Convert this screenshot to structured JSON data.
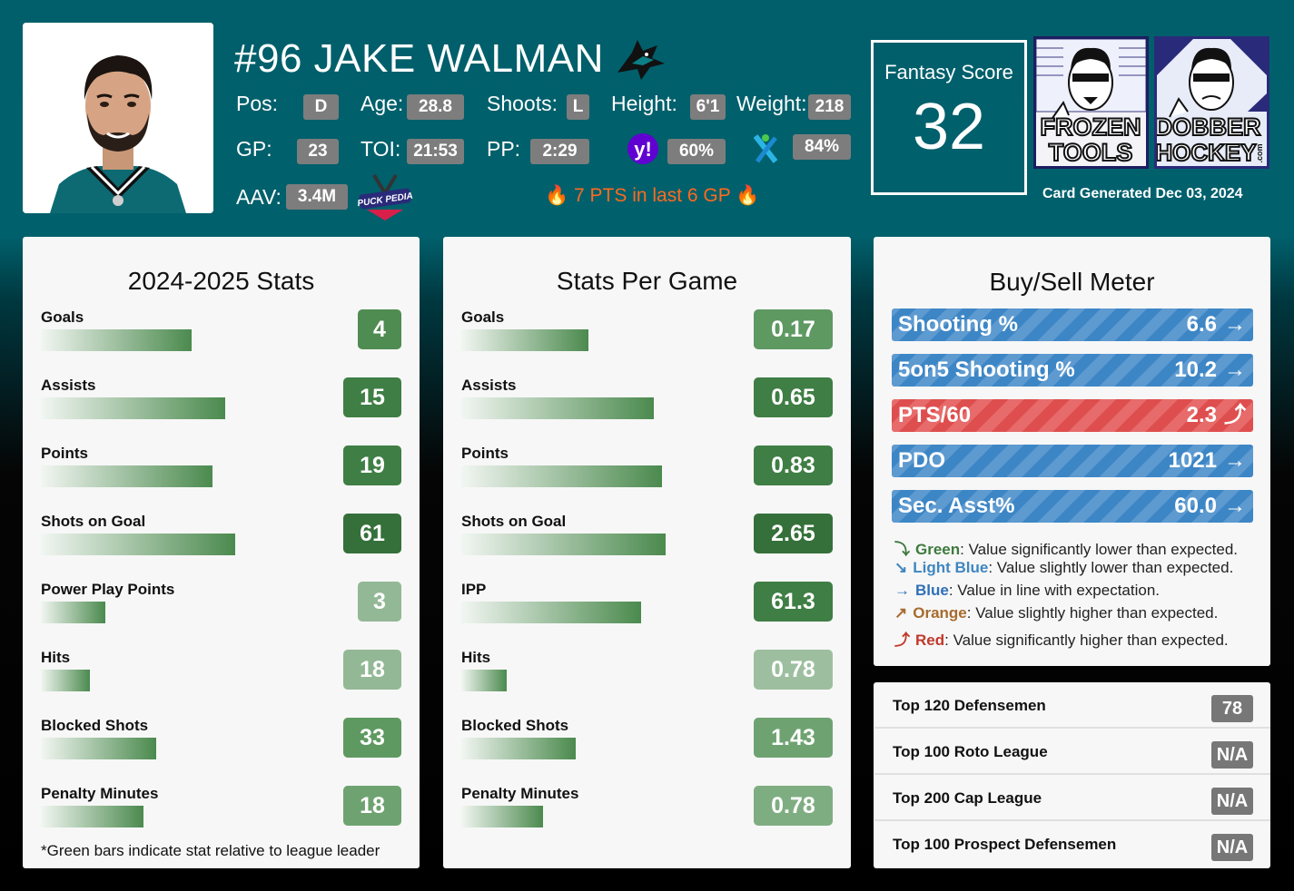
{
  "player": {
    "name": "#96 JAKE WALMAN",
    "labels": {
      "pos": "Pos:",
      "age": "Age:",
      "shoots": "Shoots:",
      "height": "Height:",
      "weight": "Weight:",
      "gp": "GP:",
      "toi": "TOI:",
      "pp": "PP:",
      "aav": "AAV:"
    },
    "values": {
      "pos": "D",
      "age": "28.8",
      "shoots": "L",
      "height": "6'1",
      "weight": "218",
      "gp": "23",
      "toi": "21:53",
      "pp": "2:29",
      "yahoo": "60%",
      "espn": "84%",
      "aav": "3.4M"
    },
    "hot_streak": "7 PTS in last 6 GP"
  },
  "fantasy": {
    "label": "Fantasy Score",
    "score": "32"
  },
  "logos": {
    "frozen_line1": "FROZEN",
    "frozen_line2": "TOOLS",
    "dobber_line1": "DOBBER",
    "dobber_line2": "HOCKEY",
    "dobber_com": ".com",
    "puckpedia": "PUCK PEDIA"
  },
  "generated": "Card Generated Dec 03, 2024",
  "season_stats": {
    "title": "2024-2025 Stats",
    "rows": [
      {
        "label": "Goals",
        "value": "4",
        "fraction": 0.59,
        "color": "#4f8c52"
      },
      {
        "label": "Assists",
        "value": "15",
        "fraction": 0.72,
        "color": "#3f7e44"
      },
      {
        "label": "Points",
        "value": "19",
        "fraction": 0.67,
        "color": "#3f7e44"
      },
      {
        "label": "Shots on Goal",
        "value": "61",
        "fraction": 0.76,
        "color": "#35703a"
      },
      {
        "label": "Power Play Points",
        "value": "3",
        "fraction": 0.25,
        "color": "#93b895"
      },
      {
        "label": "Hits",
        "value": "18",
        "fraction": 0.19,
        "color": "#93b895"
      },
      {
        "label": "Blocked Shots",
        "value": "33",
        "fraction": 0.45,
        "color": "#5e9961"
      },
      {
        "label": "Penalty Minutes",
        "value": "18",
        "fraction": 0.4,
        "color": "#6ea371"
      }
    ],
    "footnote": "*Green bars indicate stat relative to league leader"
  },
  "per_game": {
    "title": "Stats Per Game",
    "rows": [
      {
        "label": "Goals",
        "value": "0.17",
        "fraction": 0.31,
        "color": "#5e9961"
      },
      {
        "label": "Assists",
        "value": "0.65",
        "fraction": 0.47,
        "color": "#3f7e44"
      },
      {
        "label": "Points",
        "value": "0.83",
        "fraction": 0.49,
        "color": "#3f7e44"
      },
      {
        "label": "Shots on Goal",
        "value": "2.65",
        "fraction": 0.5,
        "color": "#35703a"
      },
      {
        "label": "IPP",
        "value": "61.3",
        "fraction": 0.44,
        "color": "#3f7e44"
      },
      {
        "label": "Hits",
        "value": "0.78",
        "fraction": 0.11,
        "color": "#9dbf9f"
      },
      {
        "label": "Blocked Shots",
        "value": "1.43",
        "fraction": 0.28,
        "color": "#6ea371"
      },
      {
        "label": "Penalty Minutes",
        "value": "0.78",
        "fraction": 0.2,
        "color": "#7fad82"
      }
    ]
  },
  "meter": {
    "title": "Buy/Sell Meter",
    "rows": [
      {
        "label": "Shooting %",
        "value": "6.6",
        "arrow": "→",
        "level": "blue"
      },
      {
        "label": "5on5 Shooting %",
        "value": "10.2",
        "arrow": "→",
        "level": "blue"
      },
      {
        "label": "PTS/60",
        "value": "2.3",
        "arrow": "⤴",
        "level": "red"
      },
      {
        "label": "PDO",
        "value": "1021",
        "arrow": "→",
        "level": "blue"
      },
      {
        "label": "Sec. Asst%",
        "value": "60.0",
        "arrow": "→",
        "level": "blue"
      }
    ],
    "legend": [
      {
        "arrow": "⤵",
        "term": "Green",
        "desc": ": Value significantly lower than expected.",
        "color": "#3d7a3e"
      },
      {
        "arrow": "↘",
        "term": "Light Blue",
        "desc": ": Value slightly lower than expected.",
        "color": "#3f86c0"
      },
      {
        "arrow": "→",
        "term": "Blue",
        "desc": ": Value in line with expectation.",
        "color": "#2f6fb6"
      },
      {
        "arrow": "↗",
        "term": "Orange",
        "desc": ": Value slightly higher than expected.",
        "color": "#a86b2d"
      },
      {
        "arrow": "⤴",
        "term": "Red",
        "desc": ": Value significantly higher than expected.",
        "color": "#c0392b"
      }
    ]
  },
  "rankings": [
    {
      "label": "Top 120 Defensemen",
      "value": "78"
    },
    {
      "label": "Top 100 Roto League",
      "value": "N/A"
    },
    {
      "label": "Top 200 Cap League",
      "value": "N/A"
    },
    {
      "label": "Top 100 Prospect Defensemen",
      "value": "N/A"
    }
  ],
  "colors": {
    "header_teal": "#005f6b",
    "blue_meter": "#3d86c6",
    "red_meter": "#de4e4e",
    "hot": "#ff6a1f"
  },
  "icons": {
    "team": "sharks-logo-icon",
    "yahoo": "yahoo-icon",
    "espn": "espn-icon",
    "fire": "fire-icon",
    "arrow": "arrow-right-icon"
  }
}
